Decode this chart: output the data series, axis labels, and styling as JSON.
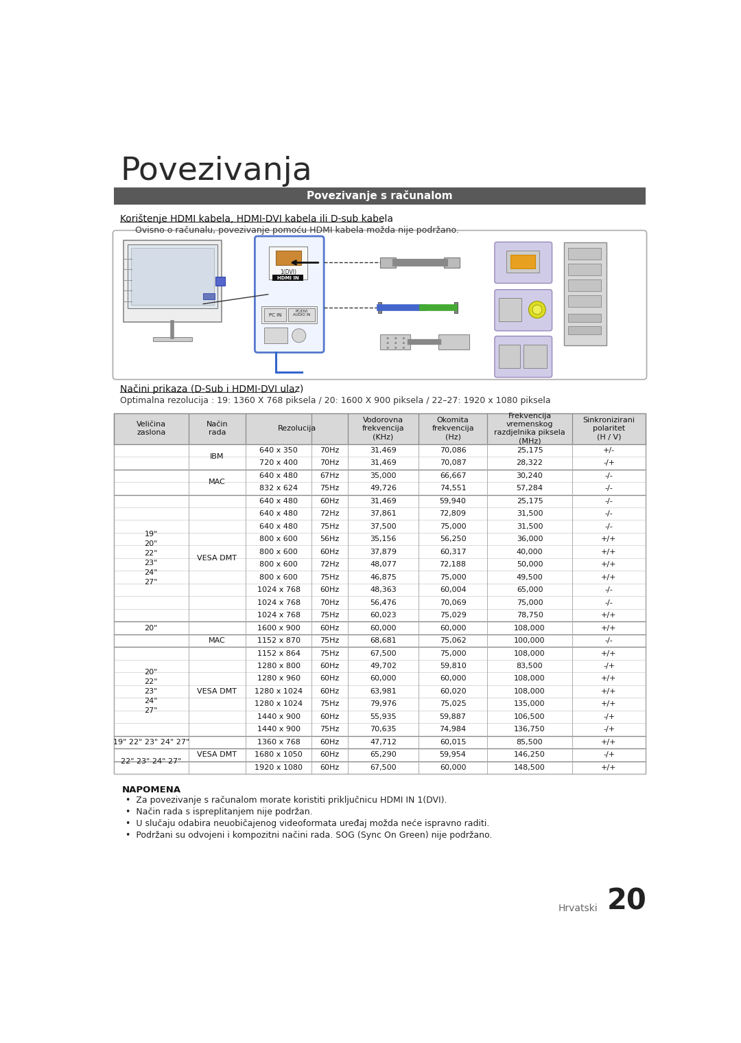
{
  "page_title": "Povezivanja",
  "section_header": "Povezivanje s računalom",
  "section_header_bg": "#5a5a5a",
  "section_header_color": "#ffffff",
  "subsection1_title": "Korištenje HDMI kabela, HDMI-DVI kabela ili D-sub kabela",
  "subsection1_note": "Ovisno o računalu, povezivanje pomoću HDMI kabela možda nije podržano.",
  "subsection2_title": "Načini prikaza (D-Sub i HDMI-DVI ulaz)",
  "subsection2_note": "Optimalna rezolucija : 19: 1360 X 768 piksela / 20: 1600 X 900 piksela / 22–27: 1920 x 1080 piksela",
  "table_rows": [
    [
      "",
      "IBM",
      "640 x 350",
      "70Hz",
      "31,469",
      "70,086",
      "25,175",
      "+/-"
    ],
    [
      "",
      "",
      "720 x 400",
      "70Hz",
      "31,469",
      "70,087",
      "28,322",
      "-/+"
    ],
    [
      "",
      "MAC",
      "640 x 480",
      "67Hz",
      "35,000",
      "66,667",
      "30,240",
      "-/-"
    ],
    [
      "",
      "",
      "832 x 624",
      "75Hz",
      "49,726",
      "74,551",
      "57,284",
      "-/-"
    ],
    [
      "19\"\n20\"\n22\"\n23\"\n24\"\n27\"",
      "VESA DMT",
      "640 x 480",
      "60Hz",
      "31,469",
      "59,940",
      "25,175",
      "-/-"
    ],
    [
      "",
      "",
      "640 x 480",
      "72Hz",
      "37,861",
      "72,809",
      "31,500",
      "-/-"
    ],
    [
      "",
      "",
      "640 x 480",
      "75Hz",
      "37,500",
      "75,000",
      "31,500",
      "-/-"
    ],
    [
      "",
      "",
      "800 x 600",
      "56Hz",
      "35,156",
      "56,250",
      "36,000",
      "+/+"
    ],
    [
      "",
      "",
      "800 x 600",
      "60Hz",
      "37,879",
      "60,317",
      "40,000",
      "+/+"
    ],
    [
      "",
      "",
      "800 x 600",
      "72Hz",
      "48,077",
      "72,188",
      "50,000",
      "+/+"
    ],
    [
      "",
      "",
      "800 x 600",
      "75Hz",
      "46,875",
      "75,000",
      "49,500",
      "+/+"
    ],
    [
      "",
      "",
      "1024 x 768",
      "60Hz",
      "48,363",
      "60,004",
      "65,000",
      "-/-"
    ],
    [
      "",
      "",
      "1024 x 768",
      "70Hz",
      "56,476",
      "70,069",
      "75,000",
      "-/-"
    ],
    [
      "",
      "",
      "1024 x 768",
      "75Hz",
      "60,023",
      "75,029",
      "78,750",
      "+/+"
    ],
    [
      "20\"",
      "",
      "1600 x 900",
      "60Hz",
      "60,000",
      "60,000",
      "108,000",
      "+/+"
    ],
    [
      "",
      "MAC",
      "1152 x 870",
      "75Hz",
      "68,681",
      "75,062",
      "100,000",
      "-/-"
    ],
    [
      "20\"\n22\"\n23\"\n24\"\n27\"",
      "VESA DMT",
      "1152 x 864",
      "75Hz",
      "67,500",
      "75,000",
      "108,000",
      "+/+"
    ],
    [
      "",
      "",
      "1280 x 800",
      "60Hz",
      "49,702",
      "59,810",
      "83,500",
      "-/+"
    ],
    [
      "",
      "",
      "1280 x 960",
      "60Hz",
      "60,000",
      "60,000",
      "108,000",
      "+/+"
    ],
    [
      "",
      "",
      "1280 x 1024",
      "60Hz",
      "63,981",
      "60,020",
      "108,000",
      "+/+"
    ],
    [
      "",
      "",
      "1280 x 1024",
      "75Hz",
      "79,976",
      "75,025",
      "135,000",
      "+/+"
    ],
    [
      "",
      "",
      "1440 x 900",
      "60Hz",
      "55,935",
      "59,887",
      "106,500",
      "-/+"
    ],
    [
      "",
      "",
      "1440 x 900",
      "75Hz",
      "70,635",
      "74,984",
      "136,750",
      "-/+"
    ],
    [
      "19\" 22\" 23\" 24\" 27\"",
      "",
      "1360 x 768",
      "60Hz",
      "47,712",
      "60,015",
      "85,500",
      "+/+"
    ],
    [
      "22\" 23\" 24\" 27\"",
      "",
      "1680 x 1050",
      "60Hz",
      "65,290",
      "59,954",
      "146,250",
      "-/+"
    ],
    [
      "",
      "",
      "1920 x 1080",
      "60Hz",
      "67,500",
      "60,000",
      "148,500",
      "+/+"
    ]
  ],
  "napomena_title": "NAPOMENA",
  "napomena_items": [
    "Za povezivanje s računalom morate koristiti priključnicu HDMI IN 1(DVI).",
    "Način rada s ispreplitanjem nije podržan.",
    "U slučaju odabira neuobičajenog videoformata uređaj možda neće ispravno raditi.",
    "Podržani su odvojeni i kompozitni načini rada. SOG (Sync On Green) nije podržano."
  ],
  "footer_text": "Hrvatski",
  "footer_page": "20"
}
